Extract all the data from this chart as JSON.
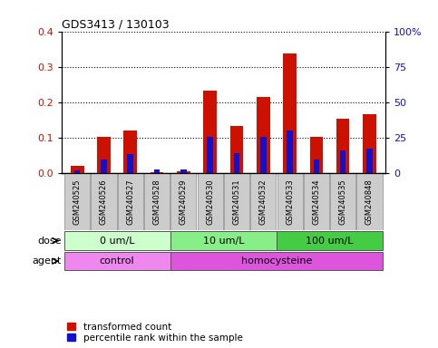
{
  "title": "GDS3413 / 130103",
  "samples": [
    "GSM240525",
    "GSM240526",
    "GSM240527",
    "GSM240528",
    "GSM240529",
    "GSM240530",
    "GSM240531",
    "GSM240532",
    "GSM240533",
    "GSM240534",
    "GSM240535",
    "GSM240848"
  ],
  "transformed_count": [
    0.022,
    0.102,
    0.122,
    0.003,
    0.005,
    0.234,
    0.134,
    0.215,
    0.337,
    0.102,
    0.153,
    0.168
  ],
  "percentile_rank": [
    2.0,
    10.0,
    13.75,
    3.0,
    3.0,
    26.0,
    14.5,
    25.5,
    30.0,
    10.0,
    16.25,
    17.5
  ],
  "ylim_left": [
    0,
    0.4
  ],
  "ylim_right": [
    0,
    100
  ],
  "yticks_left": [
    0.0,
    0.1,
    0.2,
    0.3,
    0.4
  ],
  "yticks_right": [
    0,
    25,
    50,
    75,
    100
  ],
  "bar_color_red": "#cc1100",
  "bar_color_blue": "#1111cc",
  "dose_groups": [
    {
      "label": "0 um/L",
      "start": 0,
      "end": 4,
      "color": "#ccffcc"
    },
    {
      "label": "10 um/L",
      "start": 4,
      "end": 8,
      "color": "#88ee88"
    },
    {
      "label": "100 um/L",
      "start": 8,
      "end": 12,
      "color": "#44cc44"
    }
  ],
  "agent_groups": [
    {
      "label": "control",
      "start": 0,
      "end": 4,
      "color": "#ee88ee"
    },
    {
      "label": "homocysteine",
      "start": 4,
      "end": 12,
      "color": "#dd55dd"
    }
  ],
  "dose_label": "dose",
  "agent_label": "agent",
  "legend_red": "transformed count",
  "legend_blue": "percentile rank within the sample",
  "background_color": "#ffffff",
  "plot_bg_color": "#ffffff",
  "tick_label_bg": "#cccccc",
  "grid_color": "#000000",
  "bar_width": 0.5
}
